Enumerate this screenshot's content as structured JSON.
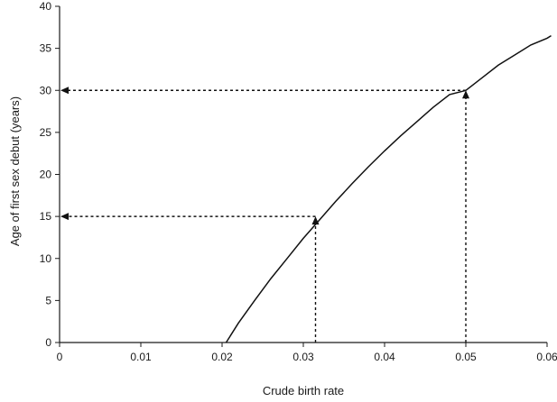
{
  "chart_data": {
    "type": "line",
    "title": "",
    "xlabel": "Crude birth rate",
    "ylabel": "Age of first sex debut (years)",
    "xlim": [
      0,
      0.06
    ],
    "ylim": [
      0,
      40
    ],
    "x_ticks": [
      "0",
      "0.01",
      "0.02",
      "0.03",
      "0.04",
      "0.05",
      "0.06"
    ],
    "y_ticks": [
      "0",
      "5",
      "10",
      "15",
      "20",
      "25",
      "30",
      "35",
      "40"
    ],
    "grid": false,
    "legend": "none",
    "series": [
      {
        "x": [
          0.0205,
          0.022,
          0.024,
          0.026,
          0.028,
          0.03,
          0.032,
          0.034,
          0.036,
          0.038,
          0.04,
          0.042,
          0.044,
          0.046,
          0.048,
          0.05,
          0.052,
          0.054,
          0.056,
          0.058,
          0.06,
          0.0605
        ],
        "y": [
          0,
          2.3,
          5.0,
          7.6,
          10.0,
          12.4,
          14.6,
          16.8,
          18.9,
          20.9,
          22.8,
          24.6,
          26.3,
          28.0,
          29.5,
          30.0,
          31.5,
          33.0,
          34.2,
          35.4,
          36.2,
          36.5
        ]
      }
    ],
    "annotations": [
      {
        "type": "dashed-arrow-pair",
        "x": 0.0315,
        "y": 15
      },
      {
        "type": "dashed-arrow-pair",
        "x": 0.05,
        "y": 30
      }
    ],
    "colors": {
      "line": "#111111",
      "axis": "#1a1a1a"
    }
  }
}
